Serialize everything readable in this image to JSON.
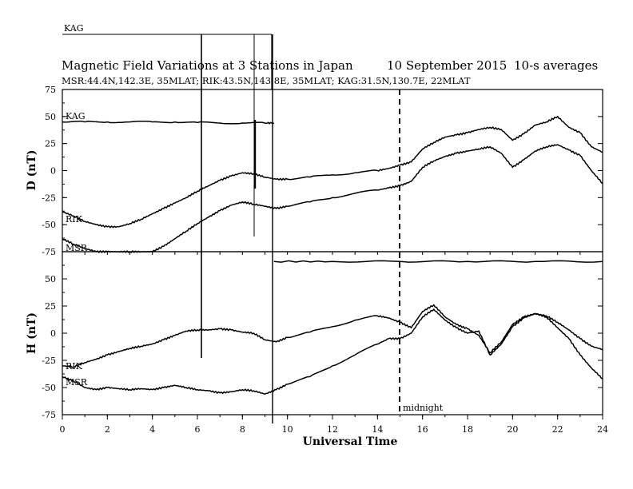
{
  "chart_data": {
    "type": "line",
    "title": "Magnetic Field Variations at 3 Stations in Japan",
    "date": "10 September 2015",
    "averaging": "10-s averages",
    "subtitle": "MSR:44.4N,142.3E, 35MLAT;  RIK:43.5N,143.8E, 35MLAT;  KAG:31.5N,130.7E, 22MLAT",
    "xlabel": "Universal Time",
    "xlim": [
      0,
      24
    ],
    "xticks": [
      "0",
      "2",
      "4",
      "6",
      "8",
      "10",
      "12",
      "14",
      "16",
      "18",
      "20",
      "22",
      "24"
    ],
    "midnight_label": "midnight",
    "midnight_ut": 15,
    "top_label": "KAG",
    "panels": [
      {
        "ylabel": "D (nT)",
        "ylim": [
          -75,
          75
        ],
        "yticks": [
          "75",
          "50",
          "25",
          "0",
          "-25",
          "-50",
          "-75"
        ],
        "series": [
          {
            "name": "KAG",
            "x": [
              0,
              1,
              2,
              3,
              4,
              5,
              6,
              7,
              8,
              9,
              9.4
            ],
            "values": [
              45,
              45,
              45,
              45,
              45,
              45,
              44.5,
              44,
              44,
              44,
              44
            ]
          },
          {
            "name": "RIK",
            "x": [
              0,
              0.5,
              1,
              1.5,
              2,
              2.5,
              3,
              3.5,
              4,
              4.5,
              5,
              5.5,
              6,
              6.5,
              7,
              7.5,
              8,
              8.5,
              9,
              9.5,
              10,
              11,
              12,
              13,
              14,
              14.5,
              15,
              15.5,
              16,
              16.5,
              17,
              17.5,
              18,
              18.5,
              19,
              19.5,
              20,
              20.5,
              21,
              21.5,
              22,
              22.5,
              23,
              23.5,
              24
            ],
            "values": [
              -38,
              -42,
              -47,
              -50,
              -52,
              -52,
              -49,
              -45,
              -40,
              -35,
              -30,
              -25,
              -19,
              -14,
              -9,
              -5,
              -2,
              -3,
              -6,
              -8,
              -8,
              -6,
              -4,
              -2,
              0,
              2,
              5,
              8,
              20,
              26,
              31,
              33,
              35,
              38,
              40,
              38,
              28,
              34,
              42,
              45,
              50,
              40,
              35,
              22,
              17
            ]
          },
          {
            "name": "MSR",
            "x": [
              0,
              0.5,
              1,
              1.5,
              2,
              2.5,
              3,
              3.5,
              4,
              4.5,
              5,
              5.5,
              6,
              6.5,
              7,
              7.5,
              8,
              8.5,
              9,
              9.5,
              10,
              11,
              12,
              13,
              14,
              14.5,
              15,
              15.5,
              16,
              16.5,
              17,
              17.5,
              18,
              18.5,
              19,
              19.5,
              20,
              20.5,
              21,
              21.5,
              22,
              22.5,
              23,
              23.5,
              24
            ],
            "values": [
              -63,
              -68,
              -72,
              -76,
              -79,
              -80,
              -79,
              -78,
              -75,
              -70,
              -63,
              -56,
              -49,
              -43,
              -37,
              -32,
              -29,
              -31,
              -33,
              -35,
              -33,
              -29,
              -25,
              -21,
              -18,
              -16,
              -14,
              -10,
              3,
              9,
              13,
              16,
              18,
              20,
              22,
              16,
              3,
              10,
              18,
              22,
              24,
              19,
              14,
              0,
              -12
            ]
          }
        ]
      },
      {
        "ylabel": "H (nT)",
        "ylim": [
          -75,
          75
        ],
        "yticks": [
          "75",
          "50",
          "25",
          "0",
          "-25",
          "-50",
          "-75"
        ],
        "series": [
          {
            "name": "KAG",
            "x": [
              9.4,
              12,
              15,
              18,
              21,
              24
            ],
            "values": [
              66,
              66,
              66,
              66,
              66,
              66
            ]
          },
          {
            "name": "RIK",
            "x": [
              0,
              0.5,
              1,
              1.5,
              2,
              2.5,
              3,
              3.5,
              4,
              4.5,
              5,
              5.5,
              6,
              6.5,
              7,
              7.5,
              8,
              8.5,
              9,
              9.5,
              10,
              11,
              12,
              13,
              14,
              14.5,
              15,
              15.5,
              16,
              16.5,
              17,
              17.5,
              18,
              18.5,
              19,
              19.5,
              20,
              20.5,
              21,
              21.5,
              22,
              22.5,
              23,
              23.5,
              24
            ],
            "values": [
              -30,
              -31,
              -27,
              -24,
              -20,
              -17,
              -14,
              -12,
              -10,
              -6,
              -2,
              2,
              3,
              3,
              4,
              3,
              1,
              0,
              -6,
              -8,
              -4,
              1,
              6,
              12,
              16,
              14,
              10,
              5,
              20,
              26,
              15,
              8,
              4,
              -2,
              -18,
              -8,
              8,
              15,
              18,
              16,
              10,
              3,
              -5,
              -12,
              -15
            ]
          },
          {
            "name": "MSR",
            "x": [
              0,
              0.5,
              1,
              1.5,
              2,
              2.5,
              3,
              3.5,
              4,
              4.5,
              5,
              5.5,
              6,
              6.5,
              7,
              7.5,
              8,
              8.5,
              9,
              9.5,
              10,
              11,
              12,
              13,
              14,
              14.5,
              15,
              15.5,
              16,
              16.5,
              17,
              17.5,
              18,
              18.5,
              19,
              19.5,
              20,
              20.5,
              21,
              21.5,
              22,
              22.5,
              23,
              23.5,
              24
            ],
            "values": [
              -40,
              -44,
              -50,
              -52,
              -50,
              -51,
              -52,
              -51,
              -52,
              -50,
              -48,
              -50,
              -52,
              -53,
              -55,
              -54,
              -52,
              -53,
              -56,
              -52,
              -47,
              -40,
              -30,
              -20,
              -10,
              -5,
              -5,
              0,
              15,
              22,
              12,
              5,
              0,
              2,
              -20,
              -10,
              6,
              14,
              18,
              15,
              5,
              -5,
              -20,
              -32,
              -42
            ]
          }
        ]
      }
    ],
    "grid": false,
    "legend": "none"
  }
}
